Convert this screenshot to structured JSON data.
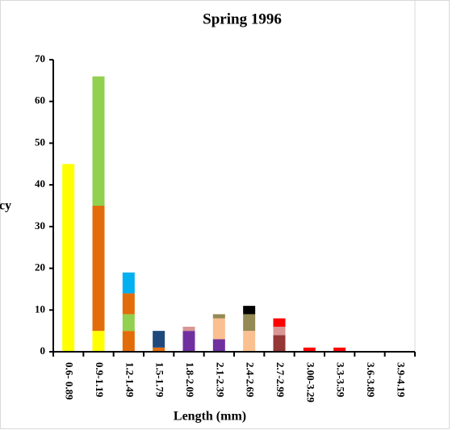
{
  "chart_data": {
    "type": "stacked_bar",
    "title": "Spring 1996",
    "x_label": "Length (mm)",
    "y_label": "cy",
    "categories": [
      "0.6- 0.89",
      "0.9-1.19",
      "1.2-1.49",
      "1.5-1.79",
      "1.8-2.09",
      "2.1-2.39",
      "2.4-2.69",
      "2.7-2.99",
      "3.00-3.29",
      "3.3-3.59",
      "3.6-3.89",
      "3.9-4.19"
    ],
    "series": [
      {
        "values": [
          45,
          5,
          5,
          1,
          5,
          3,
          5,
          4,
          1,
          1,
          null,
          null
        ],
        "colors": [
          "#ffff00",
          "#ffff00",
          "#e36c0a",
          "#e36c0a",
          "#7030a0",
          "#7030a0",
          "#fac090",
          "#953735",
          "#ff0000",
          "#ff0000",
          null,
          null
        ]
      },
      {
        "values": [
          null,
          30,
          4,
          4,
          1,
          5,
          4,
          2,
          null,
          null,
          null,
          null
        ],
        "colors": [
          null,
          "#e36c0a",
          "#92d050",
          "#1f497d",
          "#d99694",
          "#fac090",
          "#948a54",
          "#d99694",
          null,
          null,
          null,
          null
        ]
      },
      {
        "values": [
          null,
          31,
          5,
          null,
          null,
          1,
          2,
          2,
          null,
          null,
          null,
          null
        ],
        "colors": [
          null,
          "#92d050",
          "#e36c0a",
          null,
          null,
          "#948a54",
          "#000000",
          "#ff0000",
          null,
          null,
          null,
          null
        ]
      },
      {
        "values": [
          null,
          null,
          5,
          null,
          null,
          null,
          null,
          null,
          null,
          null,
          null,
          null
        ],
        "colors": [
          null,
          null,
          "#00b0f0",
          null,
          null,
          null,
          null,
          null,
          null,
          null,
          null,
          null
        ]
      }
    ],
    "ylim": [
      0,
      70
    ],
    "yticks": [
      0,
      10,
      20,
      30,
      40,
      50,
      60,
      70
    ]
  }
}
